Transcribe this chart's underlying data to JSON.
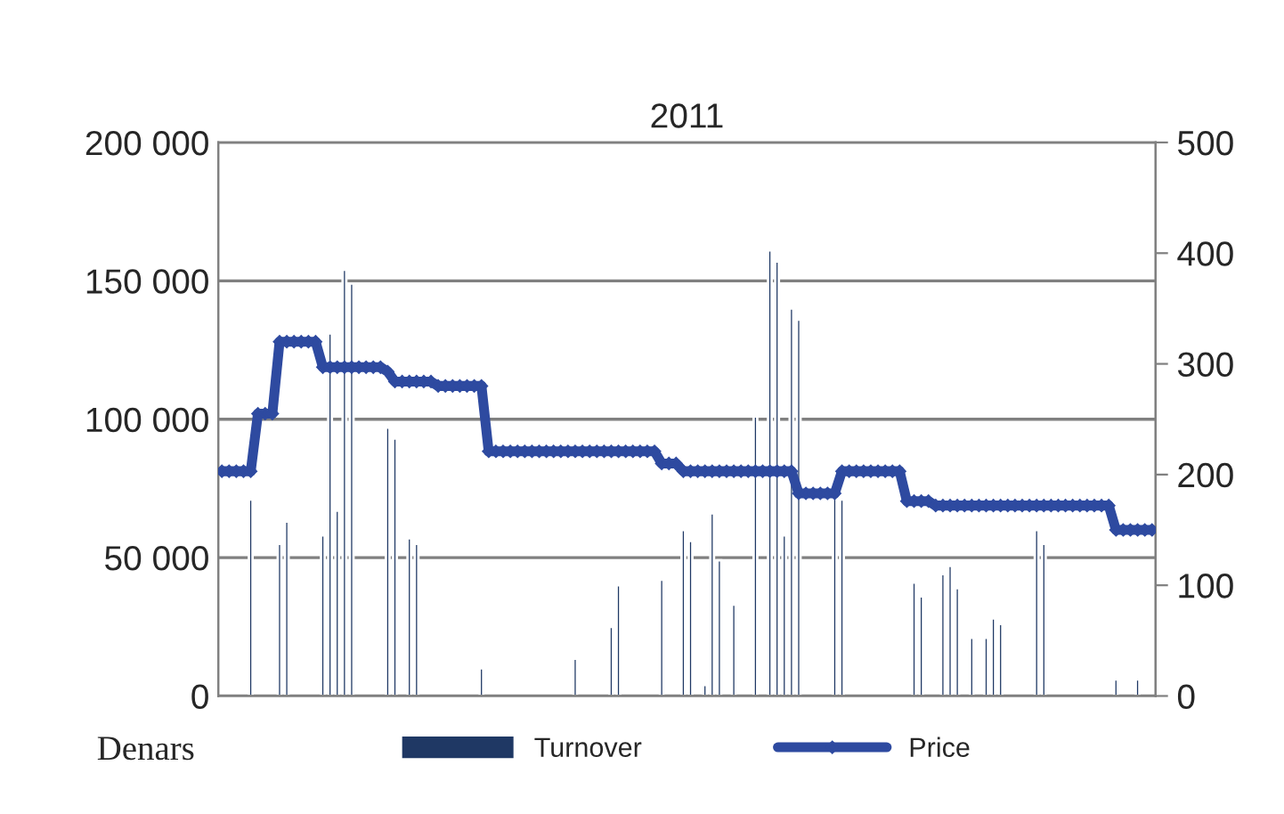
{
  "chart_data": {
    "type": "bar",
    "title": "2011",
    "ylabel": "Denars",
    "categories": [
      null,
      null,
      null,
      null,
      null,
      null,
      null,
      null,
      null,
      null,
      null,
      null,
      null,
      null,
      null,
      null,
      null,
      null,
      null,
      null,
      null,
      null,
      null,
      null,
      null,
      null,
      null,
      null,
      null,
      null,
      null,
      null,
      null,
      null,
      null,
      null,
      null,
      null,
      null,
      null,
      null,
      null,
      null,
      null,
      null,
      null,
      null,
      null,
      null,
      null,
      null,
      null,
      null,
      null,
      null,
      null,
      null,
      null,
      null,
      null,
      null,
      null,
      null,
      null,
      null,
      null,
      null,
      null,
      null,
      null,
      null,
      null,
      null,
      null,
      null,
      null,
      null,
      null,
      null,
      null,
      null,
      null,
      null,
      null,
      null,
      null,
      null,
      null,
      null,
      null,
      null,
      null,
      null,
      null,
      null,
      null,
      null,
      null,
      null,
      null,
      null,
      null,
      null,
      null,
      null,
      null,
      null,
      null,
      null,
      null,
      null,
      null,
      null,
      null,
      null,
      null,
      null,
      null,
      null,
      null,
      null,
      null,
      null,
      null,
      null,
      null,
      null,
      null,
      null,
      null
    ],
    "series": [
      {
        "name": "Turnover",
        "color": "#1f3864",
        "values": [
          null,
          null,
          null,
          null,
          71000,
          null,
          null,
          null,
          55000,
          63000,
          null,
          null,
          null,
          null,
          58000,
          131000,
          67000,
          154000,
          149000,
          null,
          null,
          null,
          null,
          97000,
          93000,
          null,
          57000,
          55000,
          null,
          null,
          null,
          null,
          null,
          null,
          null,
          null,
          10000,
          null,
          null,
          null,
          null,
          null,
          null,
          null,
          null,
          null,
          null,
          null,
          null,
          13500,
          null,
          null,
          null,
          null,
          25000,
          40000,
          null,
          null,
          null,
          null,
          null,
          42000,
          null,
          null,
          60000,
          56000,
          null,
          4000,
          66000,
          49000,
          null,
          33000,
          null,
          null,
          101000,
          null,
          161000,
          157000,
          58000,
          140000,
          136000,
          null,
          null,
          null,
          null,
          73000,
          71000,
          null,
          null,
          null,
          null,
          null,
          null,
          null,
          null,
          null,
          41000,
          36000,
          null,
          null,
          44000,
          47000,
          39000,
          null,
          21000,
          null,
          21000,
          28000,
          26000,
          null,
          null,
          null,
          null,
          60000,
          55000,
          null,
          null,
          null,
          null,
          null,
          null,
          null,
          null,
          null,
          6000,
          null,
          null,
          6000,
          null,
          null
        ]
      },
      {
        "name": "Price",
        "type": "line",
        "axis": "y2",
        "color": "#2e4aa0",
        "values": [
          203,
          203,
          203,
          203,
          203,
          255,
          255,
          255,
          320,
          320,
          320,
          320,
          320,
          320,
          297,
          297,
          297,
          297,
          297,
          297,
          297,
          297,
          297,
          293,
          284,
          284,
          284,
          284,
          284,
          284,
          280,
          280,
          280,
          280,
          280,
          280,
          280,
          221,
          221,
          221,
          221,
          221,
          221,
          221,
          221,
          221,
          221,
          221,
          221,
          221,
          221,
          221,
          221,
          221,
          221,
          221,
          221,
          221,
          221,
          221,
          221,
          210,
          210,
          210,
          203,
          203,
          203,
          203,
          203,
          203,
          203,
          203,
          203,
          203,
          203,
          203,
          203,
          203,
          203,
          203,
          183,
          183,
          183,
          183,
          183,
          183,
          203,
          203,
          203,
          203,
          203,
          203,
          203,
          203,
          203,
          176,
          176,
          176,
          176,
          172,
          172,
          172,
          172,
          172,
          172,
          172,
          172,
          172,
          172,
          172,
          172,
          172,
          172,
          172,
          172,
          172,
          172,
          172,
          172,
          172,
          172,
          172,
          172,
          172,
          150,
          150,
          150,
          150,
          150,
          150
        ]
      }
    ],
    "ylim": [
      0,
      200000
    ],
    "yticks": [
      0,
      {
        "value": 50000,
        "label": "50 000"
      },
      {
        "value": 100000,
        "label": "100 000"
      },
      {
        "value": 150000,
        "label": "150 000"
      },
      {
        "value": 200000,
        "label": "200 000"
      }
    ],
    "y2lim": [
      0,
      500
    ],
    "y2ticks": [
      0,
      100,
      200,
      300,
      400,
      500
    ],
    "grid": "y",
    "legend": "bottom",
    "marker": "diamond",
    "line_style": "solid"
  }
}
